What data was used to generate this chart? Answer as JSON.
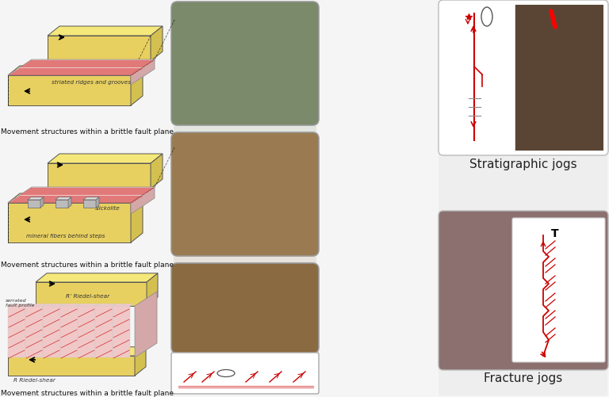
{
  "bg_color": "#f0f0f0",
  "yellow": "#f5e87a",
  "yellow_side": "#d4c050",
  "yellow_front": "#e8d060",
  "pink_fault": "#f0c8c8",
  "pink_side": "#d4a8a8",
  "red_line": "#cc0000",
  "gray_block": "#999999",
  "gray_dark": "#777777",
  "labels": {
    "striated": "striated ridges and grooves",
    "slickolite": "slickolite",
    "mineral_fibers": "mineral fibers behind steps",
    "serrated": "serrated\nfault profile",
    "riedel": "R Riedel-shear",
    "riedel_prime": "R’ Riedel-shear",
    "movement1": "Movement structures within a brittle fault plane",
    "movement2": "Movement structures within a brittle fault plane",
    "movement3": "Movement structures within a brittle fault plane",
    "strat_jogs": "Stratigraphic jogs",
    "frac_jogs": "Fracture jogs"
  },
  "photo1_color": "#7a8a6a",
  "photo2_color": "#9a7a50",
  "photo3_color": "#8a6a40",
  "strat_photo_color": "#5a4535",
  "frac_photo_color": "#7a6060"
}
